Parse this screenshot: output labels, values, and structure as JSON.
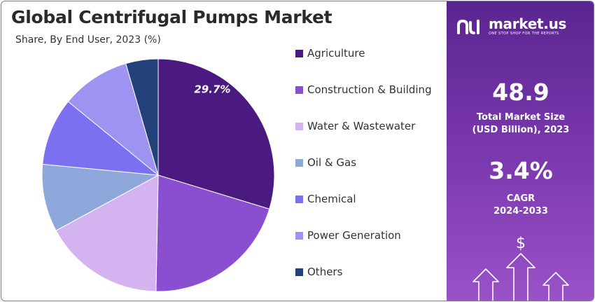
{
  "header": {
    "title": "Global Centrifugal Pumps Market",
    "subtitle": "Share, By End User, 2023 (%)"
  },
  "chart_data": {
    "type": "pie",
    "categories": [
      "Agriculture",
      "Construction & Building",
      "Water & Wastewater",
      "Oil & Gas",
      "Chemical",
      "Power Generation",
      "Others"
    ],
    "values": [
      29.7,
      20.6,
      16.8,
      9.4,
      9.4,
      9.6,
      4.5
    ],
    "colors": [
      "#4a1a80",
      "#8a4fd0",
      "#d4b4f0",
      "#8ea8dc",
      "#7a70f0",
      "#9c94f0",
      "#22417a"
    ],
    "data_labels": [
      "29.7%",
      "",
      "",
      "",
      "",
      "",
      ""
    ],
    "legend_position": "right"
  },
  "sidebar": {
    "brand_name": "market.us",
    "brand_tagline": "ONE STOP SHOP FOR THE REPORTS",
    "market_size_value": "48.9",
    "market_size_label_line1": "Total Market Size",
    "market_size_label_line2": "(USD Billion), 2023",
    "cagr_value": "3.4%",
    "cagr_label_line1": "CAGR",
    "cagr_label_line2": "2024-2033",
    "icon": "growth-arrows-dollar-icon"
  }
}
